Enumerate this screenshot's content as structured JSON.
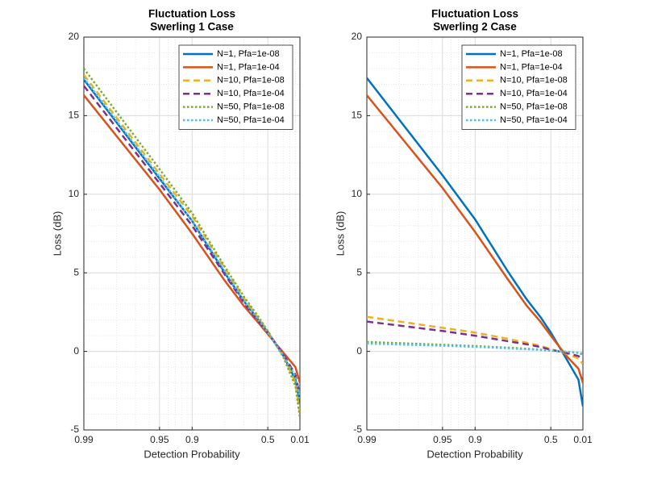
{
  "chart_data": [
    {
      "type": "line",
      "title": [
        "Fluctuation Loss",
        "Swerling 1 Case"
      ],
      "x_label": "Detection Probability",
      "y_label": "Loss (dB)",
      "xscale": "log-complement",
      "xlim": [
        0.99,
        0.01
      ],
      "xticks": [
        0.99,
        0.95,
        0.9,
        0.5,
        0.01
      ],
      "ylim": [
        -5,
        20
      ],
      "yticks": [
        -5,
        0,
        5,
        10,
        15,
        20
      ],
      "grid": true,
      "minor_grid": true,
      "legend": "upper right",
      "x": [
        0.99,
        0.95,
        0.9,
        0.8,
        0.7,
        0.6,
        0.5,
        0.3,
        0.1,
        0.01
      ],
      "series": [
        {
          "name": "N=1,  Pfa=1e-08",
          "color": "#0072BD",
          "dash": "solid",
          "values": [
            17.3,
            11.0,
            8.3,
            5.0,
            3.2,
            2.1,
            1.2,
            -0.3,
            -1.8,
            -3.3
          ]
        },
        {
          "name": "N=1,  Pfa=1e-04",
          "color": "#D95319",
          "dash": "solid",
          "values": [
            16.3,
            10.3,
            7.5,
            4.5,
            2.9,
            1.9,
            1.1,
            -0.1,
            -1.0,
            -2.0
          ]
        },
        {
          "name": "N=10,  Pfa=1e-08",
          "color": "#EDB120",
          "dash": "dashed",
          "values": [
            17.6,
            11.3,
            8.6,
            5.3,
            3.4,
            2.2,
            1.3,
            -0.3,
            -2.0,
            -4.0
          ]
        },
        {
          "name": "N=10,  Pfa=1e-04",
          "color": "#7E2F8E",
          "dash": "dashed",
          "values": [
            16.9,
            10.7,
            8.0,
            4.9,
            3.1,
            2.0,
            1.2,
            -0.2,
            -1.5,
            -2.8
          ]
        },
        {
          "name": "N=50,  Pfa=1e-08",
          "color": "#77AC30",
          "dash": "dotted",
          "values": [
            18.0,
            11.6,
            8.8,
            5.4,
            3.5,
            2.3,
            1.3,
            -0.4,
            -2.2,
            -4.2
          ]
        },
        {
          "name": "N=50,  Pfa=1e-04",
          "color": "#4DBEEE",
          "dash": "dotted",
          "values": [
            17.4,
            11.1,
            8.3,
            5.1,
            3.2,
            2.1,
            1.2,
            -0.3,
            -1.6,
            -3.0
          ]
        }
      ]
    },
    {
      "type": "line",
      "title": [
        "Fluctuation Loss",
        "Swerling 2 Case"
      ],
      "x_label": "Detection Probability",
      "y_label": "Loss (dB)",
      "xscale": "log-complement",
      "xlim": [
        0.99,
        0.01
      ],
      "xticks": [
        0.99,
        0.95,
        0.9,
        0.5,
        0.01
      ],
      "ylim": [
        -5,
        20
      ],
      "yticks": [
        -5,
        0,
        5,
        10,
        15,
        20
      ],
      "grid": true,
      "minor_grid": true,
      "legend": "upper right",
      "x": [
        0.99,
        0.95,
        0.9,
        0.8,
        0.7,
        0.6,
        0.5,
        0.3,
        0.1,
        0.01
      ],
      "series": [
        {
          "name": "N=1,  Pfa=1e-08",
          "color": "#0072BD",
          "dash": "solid",
          "values": [
            17.4,
            11.2,
            8.4,
            5.1,
            3.3,
            2.2,
            1.2,
            -0.5,
            -1.8,
            -3.5
          ]
        },
        {
          "name": "N=1,  Pfa=1e-04",
          "color": "#D95319",
          "dash": "solid",
          "values": [
            16.3,
            10.4,
            7.6,
            4.6,
            2.9,
            1.9,
            1.0,
            -0.3,
            -1.1,
            -2.0
          ]
        },
        {
          "name": "N=10,  Pfa=1e-08",
          "color": "#EDB120",
          "dash": "dashed",
          "values": [
            2.2,
            1.5,
            1.2,
            0.8,
            0.55,
            0.35,
            0.15,
            -0.15,
            -0.45,
            -0.8
          ]
        },
        {
          "name": "N=10,  Pfa=1e-04",
          "color": "#7E2F8E",
          "dash": "dashed",
          "values": [
            1.9,
            1.3,
            1.0,
            0.65,
            0.45,
            0.28,
            0.1,
            -0.1,
            -0.3,
            -0.5
          ]
        },
        {
          "name": "N=50,  Pfa=1e-08",
          "color": "#77AC30",
          "dash": "dotted",
          "values": [
            0.6,
            0.42,
            0.34,
            0.24,
            0.17,
            0.11,
            0.05,
            -0.03,
            -0.1,
            -0.2
          ]
        },
        {
          "name": "N=50,  Pfa=1e-04",
          "color": "#4DBEEE",
          "dash": "dotted",
          "values": [
            0.5,
            0.36,
            0.29,
            0.2,
            0.14,
            0.09,
            0.04,
            -0.02,
            -0.08,
            -0.15
          ]
        }
      ]
    }
  ]
}
